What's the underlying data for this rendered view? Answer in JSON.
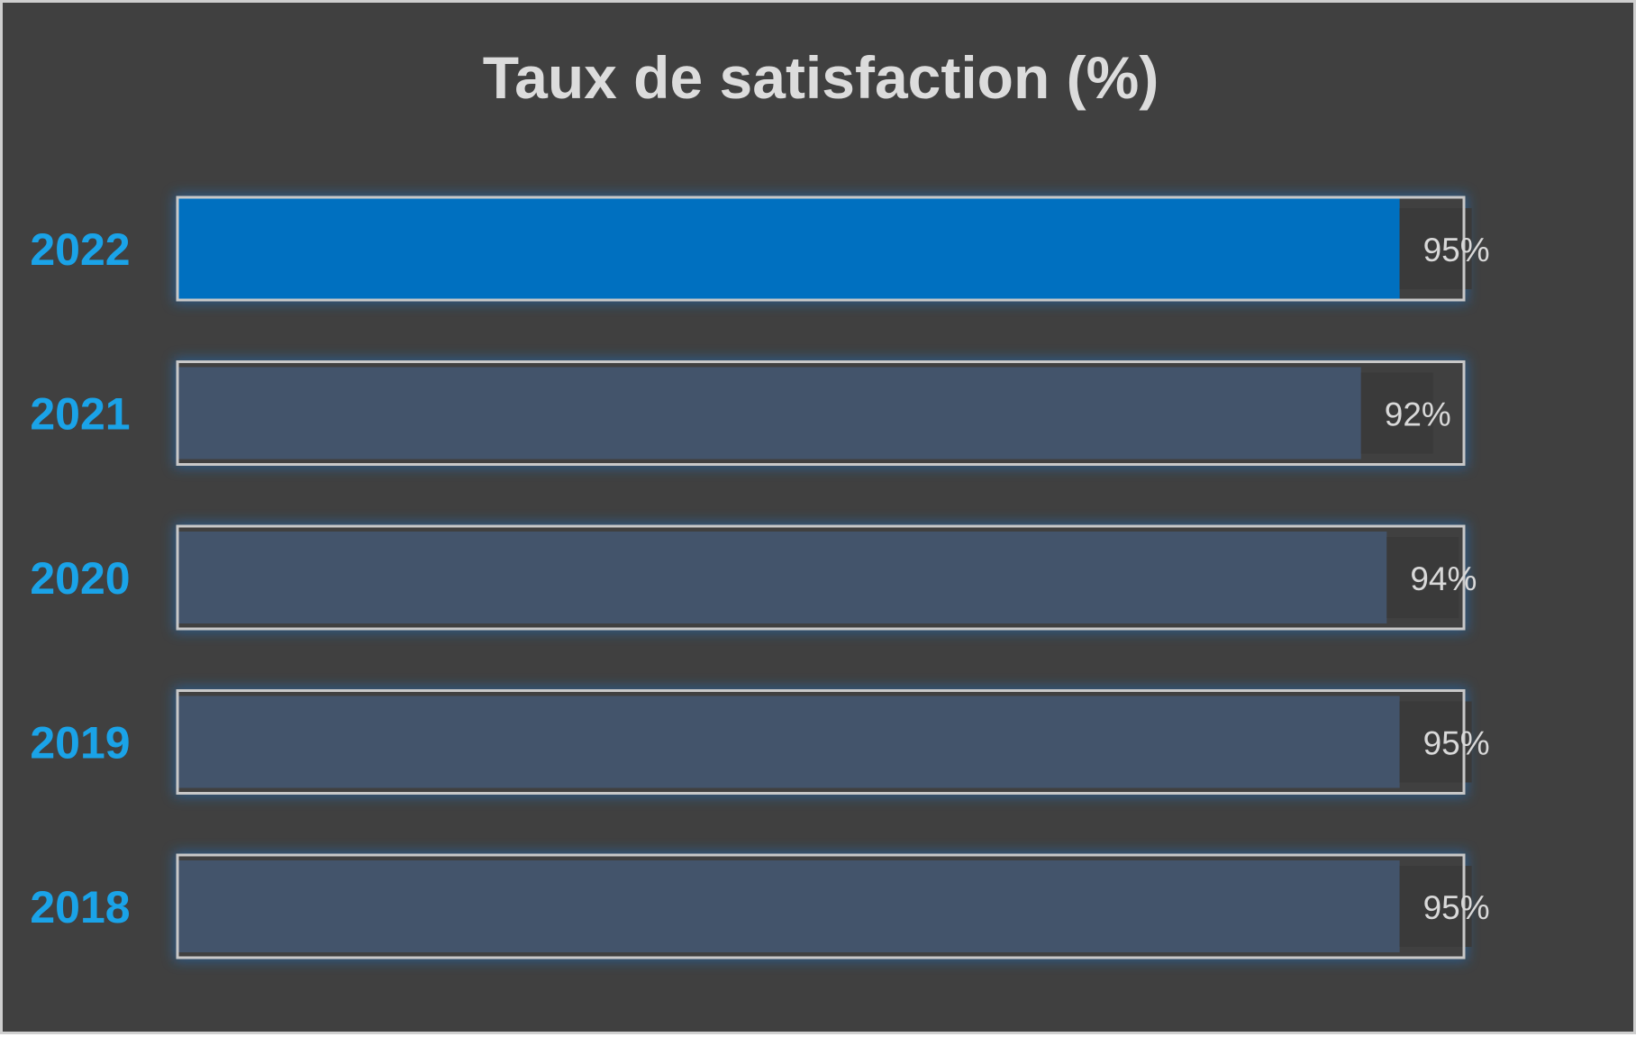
{
  "chart_data": {
    "type": "bar",
    "orientation": "horizontal",
    "title": "Taux de satisfaction (%)",
    "categories": [
      "2022",
      "2021",
      "2020",
      "2019",
      "2018"
    ],
    "values": [
      95,
      92,
      94,
      95,
      95
    ],
    "value_labels": [
      "95%",
      "92%",
      "94%",
      "95%",
      "95%"
    ],
    "highlight_category": "2022",
    "xlim": [
      0,
      100
    ],
    "xlabel": "",
    "ylabel": "",
    "grid": false,
    "legend": "none",
    "colors": {
      "background": "#404040",
      "highlight_bar": "#0070c0",
      "bar": "#43546b",
      "outline": "#c8c8c8",
      "glow": "#1f6fbf",
      "category_label": "#1aa3e8",
      "value_label": "#d9d9d9",
      "title": "#dcdcdc"
    }
  }
}
